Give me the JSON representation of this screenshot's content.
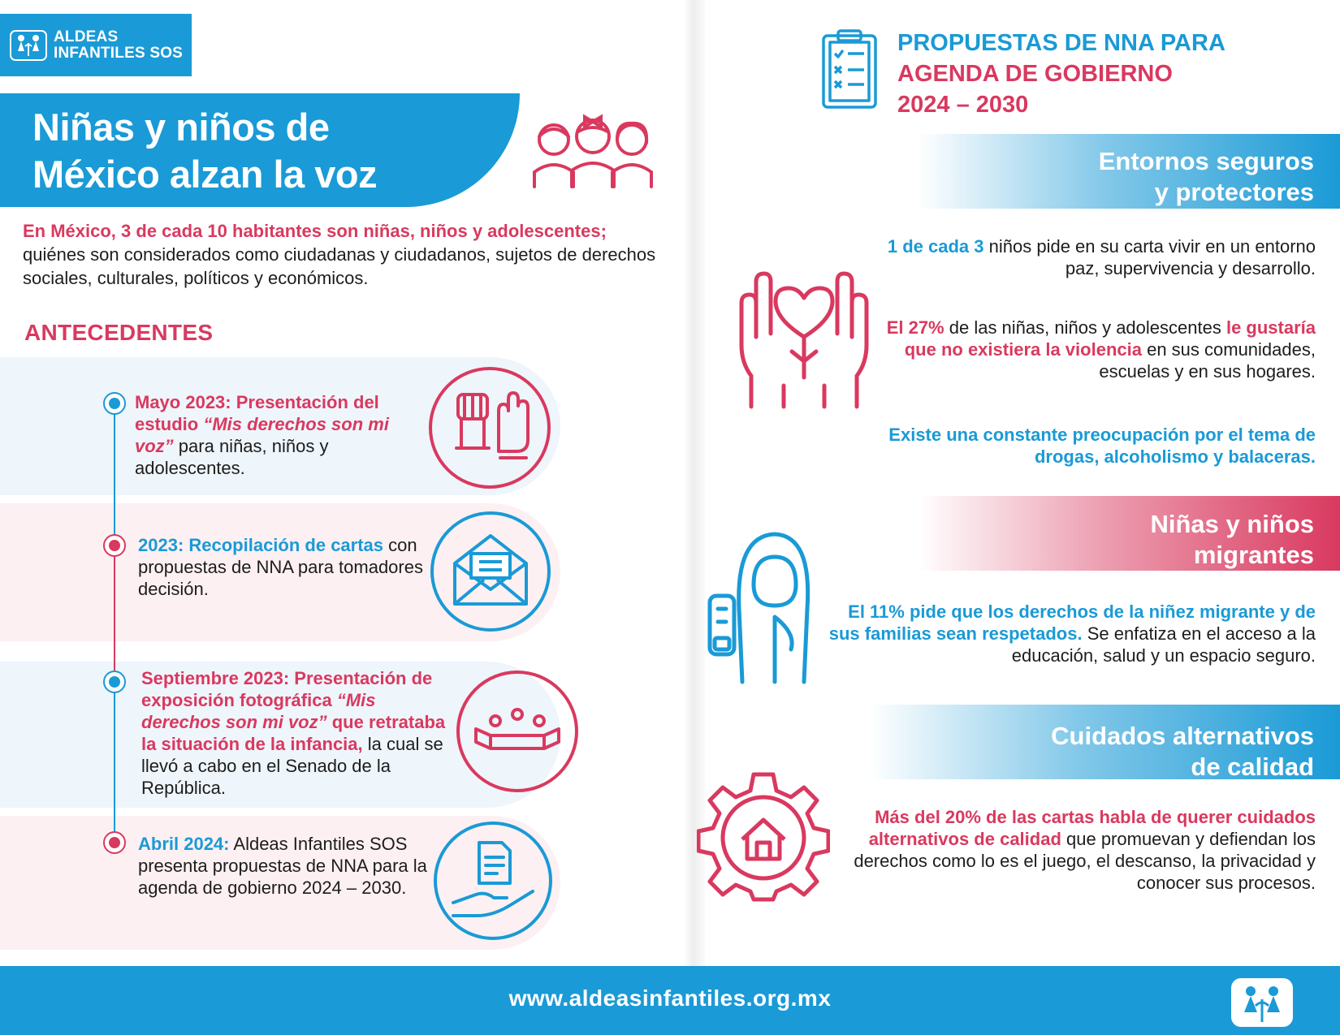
{
  "logo": {
    "line1": "ALDEAS",
    "line2": "INFANTILES SOS"
  },
  "left": {
    "title_line1": "Niñas y niños de",
    "title_line2": "México alzan la voz",
    "intro_highlight": "En México, 3 de cada 10 habitantes son niñas, niños y adolescentes;",
    "intro_rest": " quiénes son considerados como ciudadanas y ciudadanos, sujetos de derechos sociales, culturales, políticos y económicos.",
    "section_heading": "ANTECEDENTES",
    "timeline": [
      {
        "bold": "Mayo 2023: Presentación del estudio ",
        "italic": "“Mis derechos son mi voz”",
        "rest": " para niñas, niños y adolescentes.",
        "icon": "raised-fists-icon"
      },
      {
        "bold": "2023: Recopilación de cartas",
        "rest": " con propuestas de NNA para tomadores decisión.",
        "icon": "open-envelope-icon"
      },
      {
        "bold": "Septiembre 2023: Presentación de exposición fotográfica ",
        "italic": "“Mis derechos son mi voz”",
        "bold2": " que retrataba la situación de la infancia,",
        "rest": " la cual se llevó a cabo en el Senado de la República.",
        "icon": "senate-assembly-icon"
      },
      {
        "bold": "Abril 2024:",
        "rest": " Aldeas Infantiles SOS presenta propuestas de NNA para la agenda de gobierno 2024 – 2030.",
        "icon": "hand-document-icon"
      }
    ]
  },
  "right": {
    "title_line1": "PROPUESTAS DE NNA PARA",
    "title_line2": "AGENDA DE GOBIERNO",
    "title_line3": "2024 – 2030",
    "sections": [
      {
        "title_line1": "Entornos seguros",
        "title_line2": "y protectores",
        "icon": "hands-heart-icon",
        "p1_highlight": "1 de cada 3",
        "p1_rest": " niños pide en su carta vivir en un entorno paz, supervivencia y desarrollo.",
        "p2_a": "El 27%",
        "p2_b": " de las niñas, niños y adolescentes ",
        "p2_c": "le gustaría que no existiera la violencia",
        "p2_d": " en sus comunidades, escuelas y en sus hogares.",
        "p3": "Existe una constante preocupación por el tema de drogas, alcoholismo y balaceras."
      },
      {
        "title_line1": "Niñas y niños",
        "title_line2": "migrantes",
        "icon": "migrant-child-icon",
        "p1_highlight": "El 11% pide que los derechos de la niñez migrante y de sus familias sean respetados.",
        "p1_rest": " Se enfatiza en el acceso a la educación, salud y un espacio seguro."
      },
      {
        "title_line1": "Cuidados alternativos",
        "title_line2": "de calidad",
        "icon": "gear-house-icon",
        "p1_highlight": "Más del 20% de las cartas habla de querer cuidados alternativos de calidad",
        "p1_rest": " que promuevan y defiendan los derechos como lo es el juego, el descanso, la privacidad y conocer sus procesos."
      }
    ]
  },
  "footer": {
    "url": "www.aldeasinfantiles.org.mx"
  },
  "colors": {
    "blue": "#1a9ad6",
    "pink": "#d9395f"
  }
}
